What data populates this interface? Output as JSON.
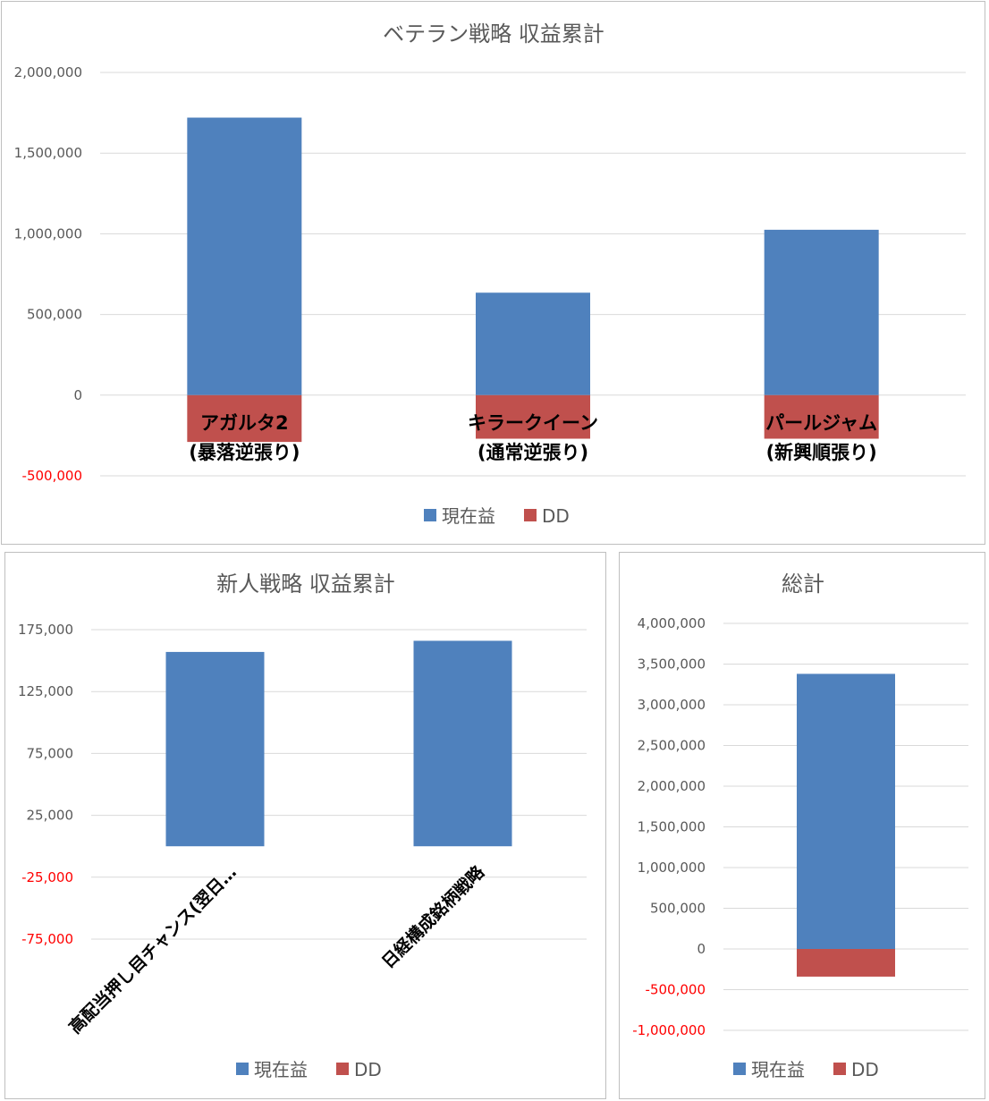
{
  "chart_data": [
    {
      "id": "veteran",
      "type": "bar",
      "stacked": true,
      "title": "ベテラン戦略 収益累計",
      "categories": [
        [
          "アガルタ2",
          "(暴落逆張り)"
        ],
        [
          "キラークイーン",
          "(通常逆張り)"
        ],
        [
          "パールジャム",
          "(新興順張り)"
        ]
      ],
      "series": [
        {
          "name": "現在益",
          "color": "#4f81bd",
          "values": [
            1720000,
            635000,
            1025000
          ]
        },
        {
          "name": "DD",
          "color": "#c0504d",
          "values": [
            -290000,
            -270000,
            -270000
          ]
        }
      ],
      "yticks": [
        "2,000,000",
        "1,500,000",
        "1,000,000",
        "500,000",
        "0",
        "-500,000"
      ],
      "ylim": [
        -500000,
        2000000
      ],
      "category_label_position": "inside-bar",
      "grid": true,
      "legend_position": "bottom"
    },
    {
      "id": "newbie",
      "type": "bar",
      "stacked": true,
      "title": "新人戦略 収益累計",
      "categories": [
        [
          "高配当押し目チャンス(翌日…"
        ],
        [
          "日経構成銘柄戦略"
        ]
      ],
      "series": [
        {
          "name": "現在益",
          "color": "#4f81bd",
          "values": [
            157000,
            166000
          ]
        },
        {
          "name": "DD",
          "color": "#c0504d",
          "values": [
            0,
            0
          ]
        }
      ],
      "yticks": [
        "175,000",
        "125,000",
        "75,000",
        "25,000",
        "-25,000",
        "-75,000"
      ],
      "ylim": [
        -75000,
        175000
      ],
      "category_label_position": "rotated-below",
      "grid": true,
      "legend_position": "bottom"
    },
    {
      "id": "total",
      "type": "bar",
      "stacked": true,
      "title": "総計",
      "categories": [
        [
          ""
        ]
      ],
      "series": [
        {
          "name": "現在益",
          "color": "#4f81bd",
          "values": [
            3380000
          ]
        },
        {
          "name": "DD",
          "color": "#c0504d",
          "values": [
            -340000
          ]
        }
      ],
      "yticks": [
        "4,000,000",
        "3,500,000",
        "3,000,000",
        "2,500,000",
        "2,000,000",
        "1,500,000",
        "1,000,000",
        "500,000",
        "0",
        "-500,000",
        "-1,000,000"
      ],
      "ylim": [
        -1000000,
        4000000
      ],
      "category_label_position": "none",
      "grid": true,
      "legend_position": "bottom"
    }
  ],
  "colors": {
    "positive_tick": "#595959",
    "negative_tick": "#ff0000"
  }
}
